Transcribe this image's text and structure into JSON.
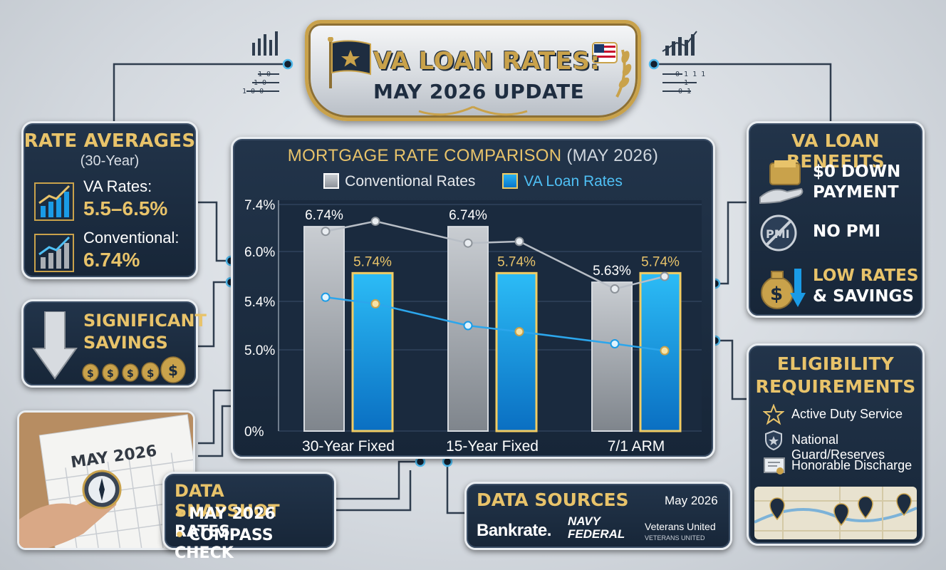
{
  "banner": {
    "title_line1": "VA LOAN RATES:",
    "title_line2": "MAY 2026 UPDATE"
  },
  "rate_averages": {
    "title": "RATE AVERAGES",
    "subtitle": "(30-Year)",
    "va_label": "VA Rates:",
    "va_value": "5.5–6.5%",
    "conv_label": "Conventional:",
    "conv_value": "6.74%"
  },
  "savings": {
    "line1": "SIGNIFICANT",
    "line2": "SAVINGS"
  },
  "benefits": {
    "title": "VA LOAN BENEFITS",
    "item1_line1": "$0 DOWN",
    "item1_line2": "PAYMENT",
    "item2": "NO PMI",
    "item3_line1": "LOW RATES",
    "item3_line2": "& SAVINGS",
    "pmi_icon_text": "PMI"
  },
  "eligibility": {
    "title_line1": "ELIGIBILITY",
    "title_line2": "REQUIREMENTS",
    "items": [
      "Active Duty Service",
      "National Guard/Reserves",
      "Honorable Discharge"
    ]
  },
  "calendar": {
    "month": "MAY 2026"
  },
  "snapshot": {
    "title": "DATA SNAPSHOT",
    "items": [
      "MAY 2026 RATES",
      "COMPASS CHECK"
    ]
  },
  "sources": {
    "title": "DATA SOURCES",
    "date": "May 2026",
    "bankrate": "Bankrate.",
    "navy_line1": "NAVY",
    "navy_line2": "FEDERAL",
    "vu_line1": "Veterans United",
    "vu_line2": "VETERANS UNITED"
  },
  "colors": {
    "gold": "#e8c36a",
    "navy": "#1b2a3c",
    "va_blue": "#1a9be6",
    "conventional_gray": "#a9aeb4"
  },
  "chart_data": {
    "type": "bar",
    "title": "MORTGAGE RATE COMPARISON",
    "title_paren": "(MAY 2026)",
    "categories": [
      "30-Year Fixed",
      "15-Year Fixed",
      "7/1 ARM"
    ],
    "series": [
      {
        "name": "Conventional Rates",
        "values": [
          6.74,
          6.74,
          5.63
        ],
        "labels": [
          "6.74%",
          "6.74%",
          "5.63%"
        ],
        "color": "#a9aeb4"
      },
      {
        "name": "VA Loan Rates",
        "values": [
          5.74,
          5.74,
          5.74
        ],
        "labels": [
          "5.74%",
          "5.74%",
          "5.74%"
        ],
        "color": "#1a9be6"
      }
    ],
    "y_ticks": [
      0,
      5.0,
      5.4,
      6.0,
      7.4
    ],
    "y_tick_labels": [
      "0%",
      "5.0%",
      "5.4%",
      "6.0%",
      "7.4%"
    ],
    "trend_lines": {
      "conventional": [
        6.6,
        6.9,
        6.25,
        6.3,
        5.55,
        5.7
      ],
      "va": [
        5.45,
        5.38,
        5.2,
        5.15,
        5.05,
        4.95
      ]
    },
    "grid": true,
    "legend": "top"
  }
}
